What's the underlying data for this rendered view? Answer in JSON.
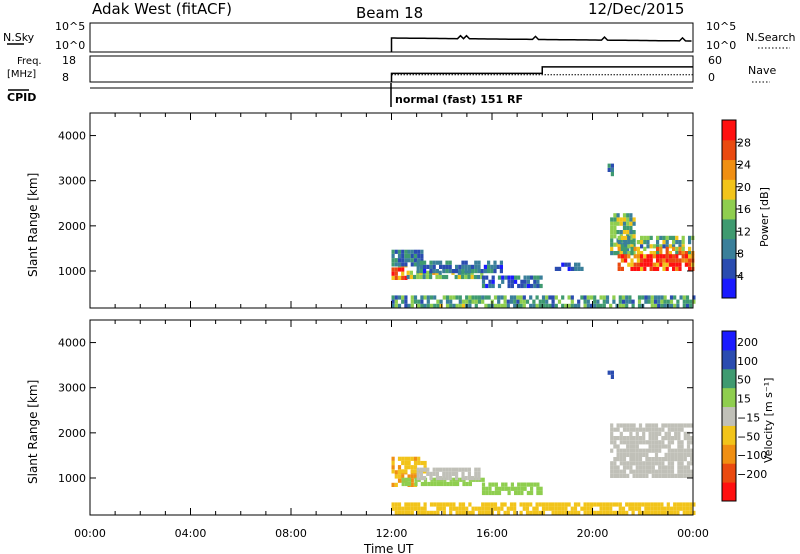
{
  "header": {
    "station": "Adak West (fitACF)",
    "beam": "Beam 18",
    "date": "12/Dec/2015"
  },
  "strips": {
    "nsky_label": "N.Sky",
    "nsky_ticks": [
      "10^5",
      "10^0"
    ],
    "nsearch_label": "N.Search",
    "nsearch_ticks": [
      "10^5",
      "10^0"
    ],
    "freq_label_line1": "Freq.",
    "freq_label_line2": "[MHz]",
    "freq_ticks": [
      "18",
      "8"
    ],
    "nave_label": "Nave",
    "nave_ticks": [
      "60",
      "0"
    ],
    "cpid_label": "CPID",
    "cpid_text": "normal (fast) 151 RF"
  },
  "colors": {
    "power_scale": [
      "#1a1aff",
      "#2a4cb0",
      "#3a7f9a",
      "#3f9a70",
      "#8fce4f",
      "#f2c41a",
      "#f08f12",
      "#ea4a10",
      "#ff1010"
    ],
    "velocity_scale": [
      "#ff1010",
      "#ea4a10",
      "#f08f12",
      "#f2c41a",
      "#c0c0b8",
      "#8fce4f",
      "#3f9a70",
      "#2a4cb0",
      "#1a1aff"
    ],
    "ground_scatter": "#c0c0b8"
  },
  "chart_data": [
    {
      "type": "heatmap",
      "name": "power",
      "ylabel": "Slant Range [km]",
      "ylim": [
        180,
        4500
      ],
      "yticks": [
        1000,
        2000,
        3000,
        4000
      ],
      "colorbar_label": "Power [dB]",
      "colorbar_ticks": [
        "28",
        "24",
        "20",
        "16",
        "12",
        "8",
        "4"
      ],
      "colorbar_range": [
        0,
        32
      ],
      "xlim": [
        0,
        24
      ],
      "regions": [
        {
          "t0": 12.0,
          "t1": 12.6,
          "r0": 800,
          "r1": 1100,
          "v": 23
        },
        {
          "t0": 12.0,
          "t1": 13.2,
          "r0": 1100,
          "r1": 1450,
          "v": 9
        },
        {
          "t0": 12.6,
          "t1": 15.6,
          "r0": 820,
          "r1": 1000,
          "v": 15
        },
        {
          "t0": 13.0,
          "t1": 16.4,
          "r0": 950,
          "r1": 1180,
          "v": 8
        },
        {
          "t0": 15.6,
          "t1": 18.0,
          "r0": 620,
          "r1": 820,
          "v": 7
        },
        {
          "t0": 18.5,
          "t1": 19.6,
          "r0": 1000,
          "r1": 1100,
          "v": 6
        },
        {
          "t0": 12.0,
          "t1": 24.0,
          "r0": 180,
          "r1": 420,
          "v": 12
        },
        {
          "t0": 20.7,
          "t1": 21.6,
          "r0": 1350,
          "r1": 2200,
          "v": 14
        },
        {
          "t0": 21.0,
          "t1": 24.0,
          "r0": 1500,
          "r1": 1700,
          "v": 13
        },
        {
          "t0": 21.0,
          "t1": 24.0,
          "r0": 1350,
          "r1": 1500,
          "v": 19
        },
        {
          "t0": 21.0,
          "t1": 24.0,
          "r0": 1000,
          "r1": 1350,
          "v": 29
        },
        {
          "t0": 20.6,
          "t1": 20.8,
          "r0": 3100,
          "r1": 3350,
          "v": 9
        }
      ]
    },
    {
      "type": "heatmap",
      "name": "velocity",
      "ylabel": "Slant Range [km]",
      "ylim": [
        180,
        4500
      ],
      "yticks": [
        1000,
        2000,
        3000,
        4000
      ],
      "colorbar_label": "Velocity [m s⁻¹]",
      "colorbar_ticks": [
        "200",
        "100",
        "50",
        "15",
        "−15",
        "−50",
        "−100",
        "−200"
      ],
      "xlim": [
        0,
        24
      ],
      "regions": [
        {
          "t0": 12.0,
          "t1": 13.0,
          "r0": 800,
          "r1": 1100,
          "v": -60
        },
        {
          "t0": 12.0,
          "t1": 13.4,
          "r0": 1100,
          "r1": 1450,
          "v": -40
        },
        {
          "t0": 12.4,
          "t1": 15.6,
          "r0": 820,
          "r1": 1000,
          "v": 30
        },
        {
          "t0": 13.0,
          "t1": 15.5,
          "r0": 950,
          "r1": 1180,
          "v": 0
        },
        {
          "t0": 15.6,
          "t1": 18.0,
          "r0": 620,
          "r1": 820,
          "v": 30
        },
        {
          "t0": 12.0,
          "t1": 24.0,
          "r0": 180,
          "r1": 420,
          "v": -30
        },
        {
          "t0": 20.7,
          "t1": 24.0,
          "r0": 1000,
          "r1": 2200,
          "v": 0
        },
        {
          "t0": 20.6,
          "t1": 20.8,
          "r0": 3100,
          "r1": 3350,
          "v": 150
        }
      ]
    }
  ],
  "xaxis": {
    "label": "Time UT",
    "ticks": [
      "00:00",
      "04:00",
      "08:00",
      "12:00",
      "16:00",
      "20:00",
      "00:00"
    ],
    "tick_hours": [
      0,
      4,
      8,
      12,
      16,
      20,
      24
    ]
  },
  "nave_series": {
    "segments": [
      {
        "t0": 12.0,
        "t1": 18.0,
        "v": 20
      },
      {
        "t0": 18.0,
        "t1": 24.0,
        "v": 35
      }
    ],
    "ylim": [
      0,
      60
    ]
  },
  "freq_series": {
    "value": 10.8,
    "ylim": [
      8,
      18
    ],
    "t0": 12.0,
    "t1": 24.0
  }
}
